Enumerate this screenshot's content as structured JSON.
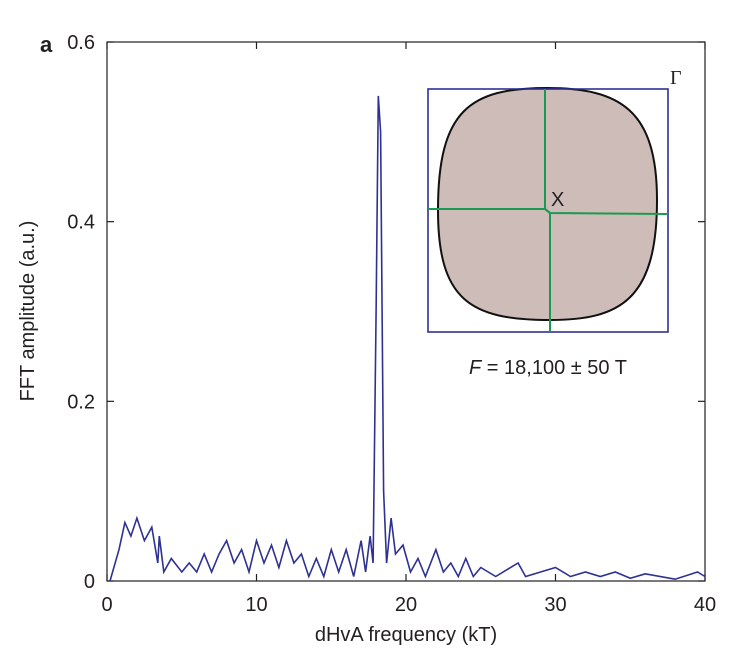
{
  "chart_data": {
    "type": "line",
    "panel_label": "a",
    "x_label": "dHvA frequency (kT)",
    "y_label": "FFT amplitude (a.u.)",
    "color": "#2e3192",
    "x": [
      0.2,
      0.8,
      1.2,
      1.6,
      2.0,
      2.5,
      3.0,
      3.4,
      3.5,
      3.8,
      4.3,
      5.0,
      5.5,
      6.0,
      6.5,
      7.0,
      7.5,
      8.0,
      8.5,
      9.0,
      9.5,
      10.0,
      10.5,
      11.0,
      11.5,
      12.0,
      12.5,
      13.0,
      13.5,
      14.0,
      14.5,
      15.0,
      15.5,
      16.0,
      16.5,
      17.0,
      17.3,
      17.6,
      17.8,
      18.0,
      18.15,
      18.3,
      18.5,
      18.7,
      19.0,
      19.3,
      19.8,
      20.3,
      20.8,
      21.3,
      22.0,
      22.5,
      23.0,
      23.5,
      24.0,
      24.5,
      25.0,
      26.0,
      27.5,
      28.0,
      29.0,
      30.0,
      31.0,
      32.0,
      33.0,
      34.0,
      35.0,
      36.0,
      38.0,
      39.5,
      40.0
    ],
    "values": [
      0.0,
      0.035,
      0.065,
      0.05,
      0.07,
      0.045,
      0.06,
      0.02,
      0.05,
      0.01,
      0.025,
      0.01,
      0.02,
      0.01,
      0.03,
      0.01,
      0.03,
      0.045,
      0.02,
      0.035,
      0.01,
      0.045,
      0.02,
      0.04,
      0.015,
      0.045,
      0.02,
      0.03,
      0.005,
      0.025,
      0.005,
      0.035,
      0.01,
      0.035,
      0.005,
      0.045,
      0.01,
      0.05,
      0.02,
      0.3,
      0.54,
      0.5,
      0.1,
      0.02,
      0.07,
      0.03,
      0.04,
      0.01,
      0.025,
      0.005,
      0.035,
      0.01,
      0.02,
      0.005,
      0.025,
      0.005,
      0.015,
      0.005,
      0.02,
      0.005,
      0.01,
      0.015,
      0.005,
      0.01,
      0.005,
      0.01,
      0.003,
      0.008,
      0.002,
      0.01,
      0.005
    ],
    "xlim": [
      0,
      40
    ],
    "xticks": [
      0,
      10,
      20,
      30,
      40
    ],
    "ylim": [
      0,
      0.6
    ],
    "yticks": [
      0,
      0.2,
      0.4,
      0.6
    ],
    "inset": {
      "point_label": "X",
      "corner_label": "Γ"
    },
    "annotation": {
      "variable": "F",
      "text": " = 18,100 ± 50 T"
    }
  }
}
